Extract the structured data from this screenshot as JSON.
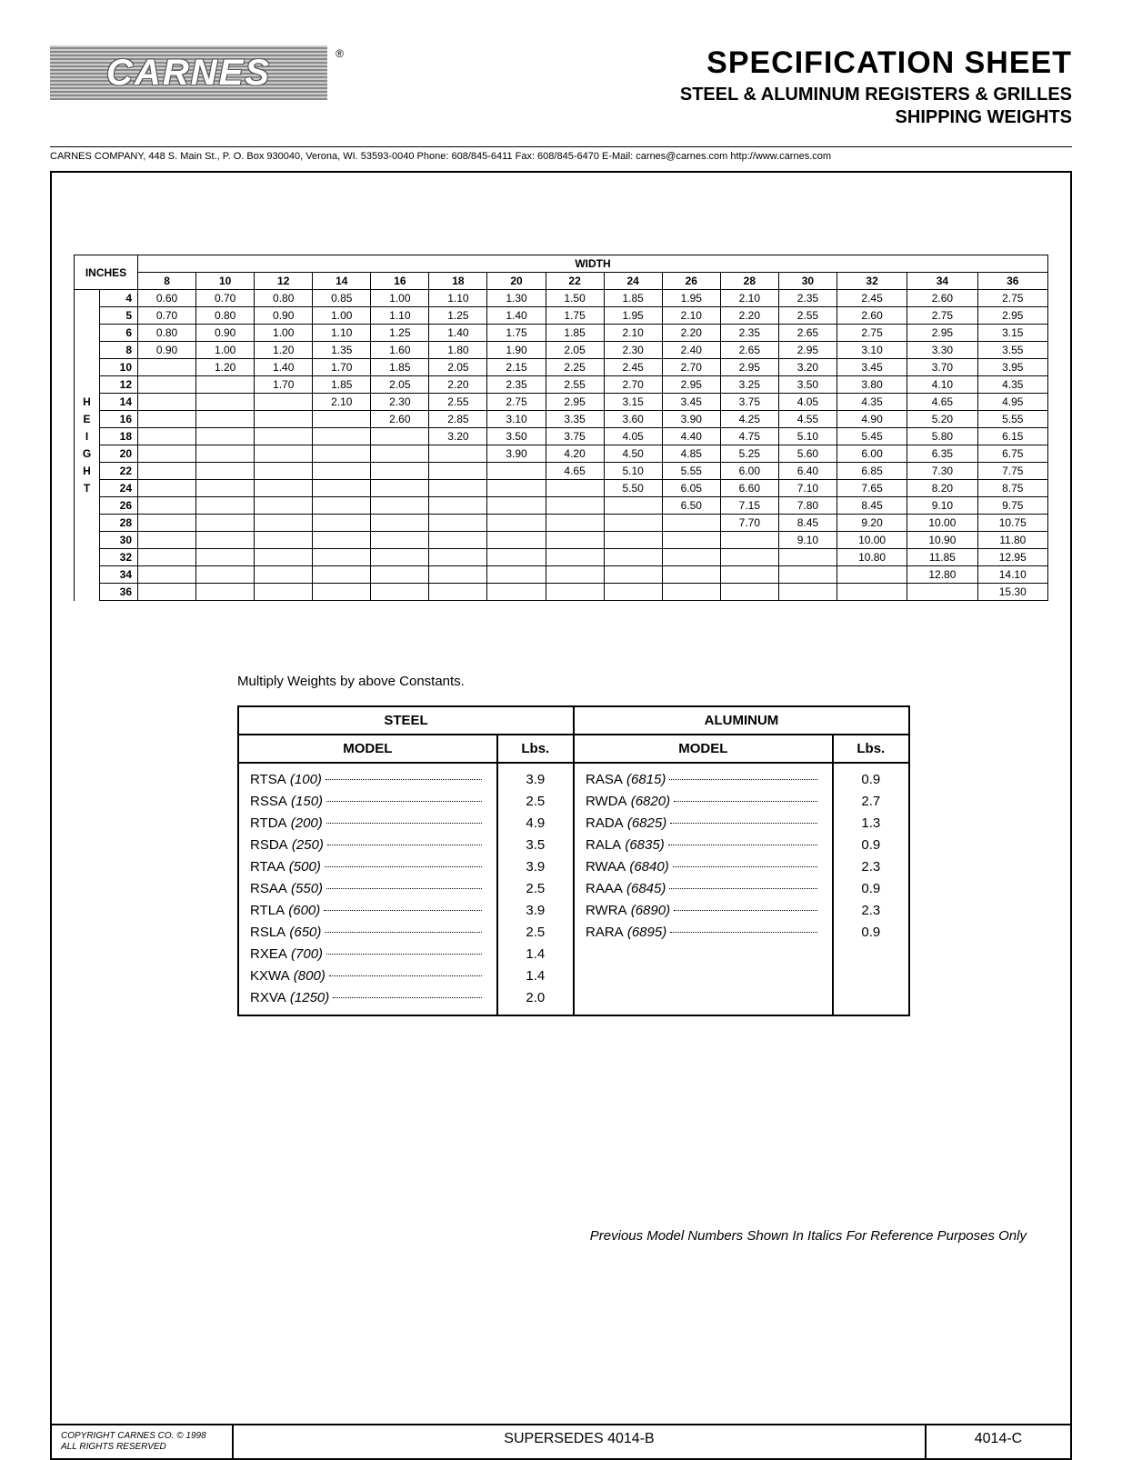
{
  "logo_text": "CARNES",
  "header": {
    "title": "SPECIFICATION SHEET",
    "subtitle1": "STEEL & ALUMINUM REGISTERS & GRILLES",
    "subtitle2": "SHIPPING WEIGHTS"
  },
  "contact": "CARNES COMPANY, 448 S. Main St., P. O. Box 930040, Verona, WI. 53593-0040   Phone: 608/845-6411   Fax: 608/845-6470   E-Mail: carnes@carnes.com   http://www.carnes.com",
  "main_table": {
    "width_label": "WIDTH",
    "inches_label": "INCHES",
    "height_label": "HEIGHT",
    "widths": [
      "8",
      "10",
      "12",
      "14",
      "16",
      "18",
      "20",
      "22",
      "24",
      "26",
      "28",
      "30",
      "32",
      "34",
      "36"
    ],
    "heights": [
      "4",
      "5",
      "6",
      "8",
      "10",
      "12",
      "14",
      "16",
      "18",
      "20",
      "22",
      "24",
      "26",
      "28",
      "30",
      "32",
      "34",
      "36"
    ],
    "rows": [
      [
        "0.60",
        "0.70",
        "0.80",
        "0.85",
        "1.00",
        "1.10",
        "1.30",
        "1.50",
        "1.85",
        "1.95",
        "2.10",
        "2.35",
        "2.45",
        "2.60",
        "2.75"
      ],
      [
        "0.70",
        "0.80",
        "0.90",
        "1.00",
        "1.10",
        "1.25",
        "1.40",
        "1.75",
        "1.95",
        "2.10",
        "2.20",
        "2.55",
        "2.60",
        "2.75",
        "2.95"
      ],
      [
        "0.80",
        "0.90",
        "1.00",
        "1.10",
        "1.25",
        "1.40",
        "1.75",
        "1.85",
        "2.10",
        "2.20",
        "2.35",
        "2.65",
        "2.75",
        "2.95",
        "3.15"
      ],
      [
        "0.90",
        "1.00",
        "1.20",
        "1.35",
        "1.60",
        "1.80",
        "1.90",
        "2.05",
        "2.30",
        "2.40",
        "2.65",
        "2.95",
        "3.10",
        "3.30",
        "3.55"
      ],
      [
        "",
        "1.20",
        "1.40",
        "1.70",
        "1.85",
        "2.05",
        "2.15",
        "2.25",
        "2.45",
        "2.70",
        "2.95",
        "3.20",
        "3.45",
        "3.70",
        "3.95"
      ],
      [
        "",
        "",
        "1.70",
        "1.85",
        "2.05",
        "2.20",
        "2.35",
        "2.55",
        "2.70",
        "2.95",
        "3.25",
        "3.50",
        "3.80",
        "4.10",
        "4.35"
      ],
      [
        "",
        "",
        "",
        "2.10",
        "2.30",
        "2.55",
        "2.75",
        "2.95",
        "3.15",
        "3.45",
        "3.75",
        "4.05",
        "4.35",
        "4.65",
        "4.95"
      ],
      [
        "",
        "",
        "",
        "",
        "2.60",
        "2.85",
        "3.10",
        "3.35",
        "3.60",
        "3.90",
        "4.25",
        "4.55",
        "4.90",
        "5.20",
        "5.55"
      ],
      [
        "",
        "",
        "",
        "",
        "",
        "3.20",
        "3.50",
        "3.75",
        "4.05",
        "4.40",
        "4.75",
        "5.10",
        "5.45",
        "5.80",
        "6.15"
      ],
      [
        "",
        "",
        "",
        "",
        "",
        "",
        "3.90",
        "4.20",
        "4.50",
        "4.85",
        "5.25",
        "5.60",
        "6.00",
        "6.35",
        "6.75"
      ],
      [
        "",
        "",
        "",
        "",
        "",
        "",
        "",
        "4.65",
        "5.10",
        "5.55",
        "6.00",
        "6.40",
        "6.85",
        "7.30",
        "7.75"
      ],
      [
        "",
        "",
        "",
        "",
        "",
        "",
        "",
        "",
        "5.50",
        "6.05",
        "6.60",
        "7.10",
        "7.65",
        "8.20",
        "8.75"
      ],
      [
        "",
        "",
        "",
        "",
        "",
        "",
        "",
        "",
        "",
        "6.50",
        "7.15",
        "7.80",
        "8.45",
        "9.10",
        "9.75"
      ],
      [
        "",
        "",
        "",
        "",
        "",
        "",
        "",
        "",
        "",
        "",
        "7.70",
        "8.45",
        "9.20",
        "10.00",
        "10.75"
      ],
      [
        "",
        "",
        "",
        "",
        "",
        "",
        "",
        "",
        "",
        "",
        "",
        "9.10",
        "10.00",
        "10.90",
        "11.80"
      ],
      [
        "",
        "",
        "",
        "",
        "",
        "",
        "",
        "",
        "",
        "",
        "",
        "",
        "10.80",
        "11.85",
        "12.95"
      ],
      [
        "",
        "",
        "",
        "",
        "",
        "",
        "",
        "",
        "",
        "",
        "",
        "",
        "",
        "12.80",
        "14.10"
      ],
      [
        "",
        "",
        "",
        "",
        "",
        "",
        "",
        "",
        "",
        "",
        "",
        "",
        "",
        "",
        "15.30"
      ]
    ]
  },
  "note": "Multiply Weights by above Constants.",
  "model_table": {
    "steel_header": "STEEL",
    "aluminum_header": "ALUMINUM",
    "model_header": "MODEL",
    "lbs_header": "Lbs.",
    "steel": [
      {
        "code": "RTSA",
        "num": "(100)",
        "lbs": "3.9"
      },
      {
        "code": "RSSA",
        "num": "(150)",
        "lbs": "2.5"
      },
      {
        "code": "RTDA",
        "num": "(200)",
        "lbs": "4.9"
      },
      {
        "code": "RSDA",
        "num": "(250)",
        "lbs": "3.5"
      },
      {
        "code": "RTAA",
        "num": "(500)",
        "lbs": "3.9"
      },
      {
        "code": "RSAA",
        "num": "(550)",
        "lbs": "2.5"
      },
      {
        "code": "RTLA",
        "num": "(600)",
        "lbs": "3.9"
      },
      {
        "code": "RSLA",
        "num": "(650)",
        "lbs": "2.5"
      },
      {
        "code": "RXEA",
        "num": "(700)",
        "lbs": "1.4"
      },
      {
        "code": "KXWA",
        "num": "(800)",
        "lbs": "1.4"
      },
      {
        "code": "RXVA",
        "num": "(1250)",
        "lbs": "2.0"
      }
    ],
    "aluminum": [
      {
        "code": "RASA",
        "num": "(6815)",
        "lbs": "0.9"
      },
      {
        "code": "RWDA",
        "num": "(6820)",
        "lbs": "2.7"
      },
      {
        "code": "RADA",
        "num": "(6825)",
        "lbs": "1.3"
      },
      {
        "code": "RALA",
        "num": "(6835)",
        "lbs": "0.9"
      },
      {
        "code": "RWAA",
        "num": "(6840)",
        "lbs": "2.3"
      },
      {
        "code": "RAAA",
        "num": "(6845)",
        "lbs": "0.9"
      },
      {
        "code": "RWRA",
        "num": "(6890)",
        "lbs": "2.3"
      },
      {
        "code": "RARA",
        "num": "(6895)",
        "lbs": "0.9"
      }
    ]
  },
  "italics_note": "Previous Model Numbers Shown In Italics For Reference Purposes Only",
  "footer": {
    "copyright_line1": "COPYRIGHT  CARNES CO. © 1998",
    "copyright_line2": "ALL RIGHTS RESERVED",
    "supersedes": "SUPERSEDES 4014-B",
    "doc_number": "4014-C"
  },
  "colors": {
    "text": "#000000",
    "background": "#ffffff",
    "border": "#000000"
  }
}
